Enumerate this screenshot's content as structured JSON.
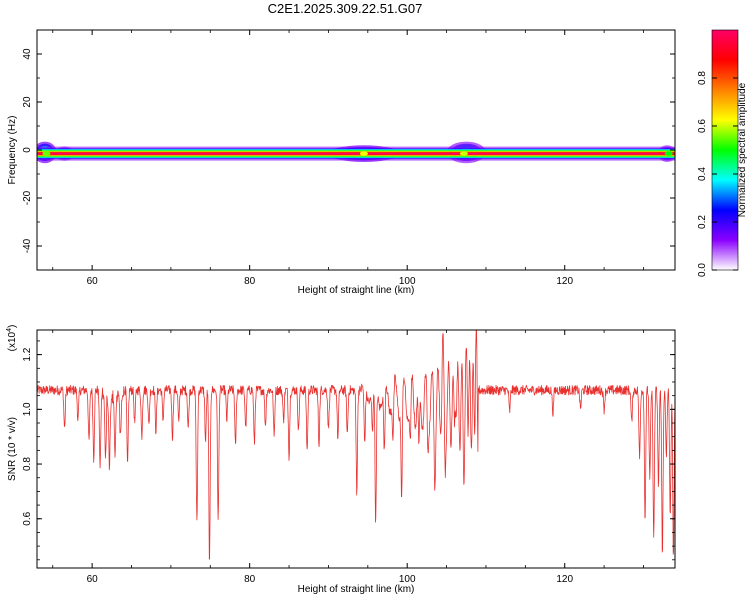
{
  "figure": {
    "title": "C2E1.2025.309.22.51.G07"
  },
  "chart_data": [
    {
      "type": "heatmap",
      "title": "C2E1.2025.309.22.51.G07",
      "xlabel": "Height of straight line (km)",
      "ylabel": "Frequency (Hz)",
      "xlim": [
        53,
        134
      ],
      "ylim": [
        -50,
        50
      ],
      "xticks": [
        60,
        80,
        100,
        120
      ],
      "xtick_labels": [
        "60",
        "80",
        "100",
        "120"
      ],
      "yticks": [
        -40,
        -20,
        0,
        20,
        40
      ],
      "ytick_labels": [
        "-40",
        "-20",
        "0",
        "20",
        "40"
      ],
      "band_center_hz": -1.5,
      "band_core_value": 1.0,
      "blobs": [
        {
          "x": 54.0,
          "y": -1.0,
          "rx": 1.5,
          "ry": 4.5,
          "value": 0.55
        },
        {
          "x": 56.5,
          "y": -1.5,
          "rx": 1.2,
          "ry": 3.0,
          "value": 0.35
        },
        {
          "x": 94.5,
          "y": -1.5,
          "rx": 4.5,
          "ry": 3.5,
          "value": 0.55
        },
        {
          "x": 107.5,
          "y": -1.0,
          "rx": 2.5,
          "ry": 4.5,
          "value": 0.45
        },
        {
          "x": 133.0,
          "y": -1.5,
          "rx": 1.2,
          "ry": 3.5,
          "value": 0.4
        }
      ],
      "colorbar": {
        "label": "Normalized spectral amplitude",
        "range": [
          0,
          1
        ],
        "ticks": [
          0.0,
          0.2,
          0.4,
          0.6,
          0.8
        ],
        "tick_labels": [
          "0.0",
          "0.2",
          "0.4",
          "0.6",
          "0.8"
        ],
        "colormap": [
          "#ffffff",
          "#8a00ff",
          "#0000ff",
          "#00ffff",
          "#00ff00",
          "#ffff00",
          "#ff8000",
          "#ff0000",
          "#ff0066"
        ]
      },
      "grid": false
    },
    {
      "type": "line",
      "xlabel": "Height of straight line (km)",
      "ylabel": "SNR (10 * v/v)",
      "y_multiplier": "(x10",
      "y_multiplier_exp": "4",
      "y_multiplier_close": ")",
      "xlim": [
        53,
        134
      ],
      "ylim": [
        0.42,
        1.29
      ],
      "xticks": [
        60,
        80,
        100,
        120
      ],
      "xtick_labels": [
        "60",
        "80",
        "100",
        "120"
      ],
      "yticks": [
        0.6,
        0.8,
        1.0,
        1.2
      ],
      "ytick_labels": [
        "0.6",
        "0.8",
        "1.0",
        "1.2"
      ],
      "color": "#e8312f",
      "baseline": 1.07,
      "noise": 0.018,
      "dips": [
        [
          56.5,
          0.93
        ],
        [
          58.2,
          0.96
        ],
        [
          59.6,
          0.88
        ],
        [
          60.2,
          0.82
        ],
        [
          61.0,
          0.82
        ],
        [
          61.7,
          0.83
        ],
        [
          62.2,
          0.81
        ],
        [
          62.9,
          0.84
        ],
        [
          63.6,
          0.93
        ],
        [
          64.5,
          0.79
        ],
        [
          65.4,
          0.95
        ],
        [
          66.3,
          0.9
        ],
        [
          67.2,
          0.94
        ],
        [
          68.1,
          0.92
        ],
        [
          69.0,
          0.96
        ],
        [
          70.2,
          0.9
        ],
        [
          71.0,
          0.95
        ],
        [
          72.2,
          0.93
        ],
        [
          73.3,
          0.58
        ],
        [
          74.4,
          0.88
        ],
        [
          74.9,
          0.43
        ],
        [
          76.0,
          0.59
        ],
        [
          77.1,
          0.96
        ],
        [
          78.2,
          0.86
        ],
        [
          79.5,
          0.93
        ],
        [
          80.6,
          0.87
        ],
        [
          82.0,
          0.94
        ],
        [
          83.1,
          0.9
        ],
        [
          84.3,
          0.96
        ],
        [
          85.0,
          0.83
        ],
        [
          86.2,
          0.92
        ],
        [
          87.3,
          0.85
        ],
        [
          88.8,
          0.87
        ],
        [
          90.0,
          0.93
        ],
        [
          91.2,
          0.89
        ],
        [
          92.4,
          0.91
        ],
        [
          93.6,
          0.7
        ],
        [
          94.6,
          0.87
        ],
        [
          95.6,
          0.93
        ],
        [
          96.0,
          0.56
        ],
        [
          97.1,
          0.82
        ],
        [
          98.2,
          0.9
        ],
        [
          99.3,
          0.69
        ],
        [
          100.4,
          0.87
        ],
        [
          101.5,
          0.8
        ],
        [
          102.6,
          0.93
        ],
        [
          103.5,
          0.86
        ],
        [
          104.8,
          0.88
        ],
        [
          106.0,
          0.91
        ],
        [
          107.2,
          0.94
        ],
        [
          113.0,
          0.99
        ],
        [
          118.5,
          0.99
        ],
        [
          122.0,
          1.0
        ],
        [
          125.0,
          1.0
        ],
        [
          128.5,
          0.95
        ],
        [
          129.5,
          0.82
        ],
        [
          130.2,
          0.6
        ],
        [
          130.8,
          0.74
        ],
        [
          131.3,
          0.52
        ],
        [
          131.9,
          0.72
        ],
        [
          132.4,
          0.46
        ],
        [
          132.9,
          0.82
        ],
        [
          133.4,
          0.6
        ],
        [
          133.8,
          0.45
        ]
      ],
      "oscillation": {
        "x_start": 94.0,
        "x_end": 109.0,
        "amp_start": 0.02,
        "amp_end": 0.18,
        "period_start": 1.6,
        "period_end": 0.8
      },
      "peaks": [
        [
          104.5,
          1.24
        ],
        [
          106.1,
          1.25
        ],
        [
          107.6,
          1.24
        ],
        [
          108.7,
          1.26
        ]
      ],
      "grid": false
    }
  ]
}
